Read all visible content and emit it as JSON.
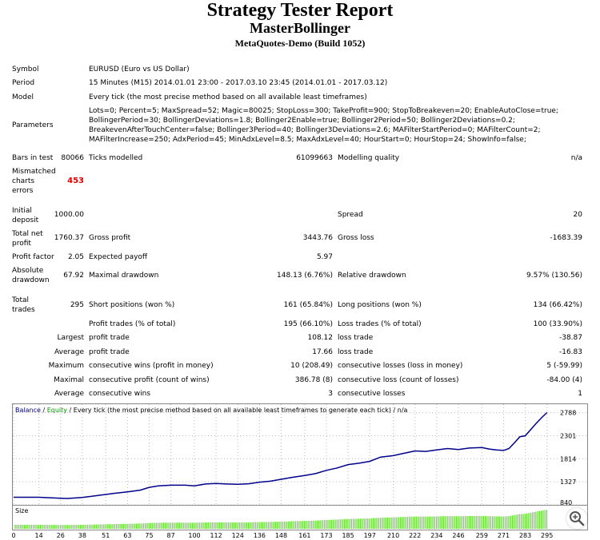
{
  "header": {
    "title": "Strategy Tester Report",
    "expert": "MasterBollinger",
    "server": "MetaQuotes-Demo (Build 1052)"
  },
  "rows": {
    "symbol": {
      "label": "Symbol",
      "value": "EURUSD (Euro vs US Dollar)"
    },
    "period": {
      "label": "Period",
      "value": "15 Minutes (M15) 2014.01.01 23:00 - 2017.03.10 23:45 (2014.01.01 - 2017.03.12)"
    },
    "model": {
      "label": "Model",
      "value": "Every tick (the most precise method based on all available least timeframes)"
    },
    "parameters": {
      "label": "Parameters",
      "lines": [
        "Lots=0; Percent=5; MaxSpread=52; Magic=80025; StopLoss=300; TakeProfit=900; StopToBreakeven=20; EnableAutoClose=true;",
        "BollingerPeriod=30; BollingerDeviations=1.8; Bollinger2Enable=true; Bollinger2Period=50; Bollinger2Deviations=0.2;",
        "BreakevenAfterTouchCenter=false; Bollinger3Period=40; Bollinger3Deviations=2.6; MAFilterStartPeriod=0; MAFilterCount=2;",
        "MAFilterIncrease=250; AdxPeriod=45; MinAdxLevel=8.5; MaxAdxLevel=40; HourStart=0; HourStop=24; ShowInfo=false;"
      ]
    },
    "bars": {
      "label": "Bars in test",
      "value": "80066",
      "label2": "Ticks modelled",
      "value2": "61099663",
      "label3": "Modelling quality",
      "value3": "n/a"
    },
    "mismatched": {
      "label_lines": [
        "Mismatched",
        "charts",
        "errors"
      ],
      "value": "453"
    },
    "deposit": {
      "label_lines": [
        "Initial",
        "deposit"
      ],
      "value": "1000.00",
      "label3": "Spread",
      "value3": "20"
    },
    "netprofit": {
      "label_lines": [
        "Total net",
        "profit"
      ],
      "value": "1760.37",
      "label2": "Gross profit",
      "value2": "3443.76",
      "label3": "Gross loss",
      "value3": "-1683.39"
    },
    "profitfactor": {
      "label": "Profit factor",
      "value": "2.05",
      "label2": "Expected payoff",
      "value2": "5.97"
    },
    "drawdown": {
      "label_lines": [
        "Absolute",
        "drawdown"
      ],
      "value": "67.92",
      "label2": "Maximal drawdown",
      "value2": "148.13 (6.76%)",
      "label3": "Relative drawdown",
      "value3": "9.57% (130.56)"
    },
    "trades": {
      "label_lines": [
        "Total",
        "trades"
      ],
      "value": "295",
      "label2": "Short positions (won %)",
      "value2": "161 (65.84%)",
      "label3": "Long positions (won %)",
      "value3": "134 (66.42%)"
    },
    "profittrades": {
      "label2": "Profit trades (% of total)",
      "value2": "195 (66.10%)",
      "label3": "Loss trades (% of total)",
      "value3": "100 (33.90%)"
    },
    "largest": {
      "label": "Largest",
      "label2": "profit trade",
      "value2": "108.12",
      "label3": "loss trade",
      "value3": "-38.87"
    },
    "average": {
      "label": "Average",
      "label2": "profit trade",
      "value2": "17.66",
      "label3": "loss trade",
      "value3": "-16.83"
    },
    "maxconsec": {
      "label": "Maximum",
      "label2": "consecutive wins (profit in money)",
      "value2": "10 (208.49)",
      "label3": "consecutive losses (loss in money)",
      "value3": "5 (-59.99)"
    },
    "maximal": {
      "label": "Maximal",
      "label2": "consecutive profit (count of wins)",
      "value2": "386.78 (8)",
      "label3": "consecutive loss (count of losses)",
      "value3": "-84.00 (4)"
    },
    "avgconsec": {
      "label": "Average",
      "label2": "consecutive wins",
      "value2": "3",
      "label3": "consecutive losses",
      "value3": "1"
    }
  },
  "chart_data": {
    "type": "line",
    "legend": {
      "balance": "Balance",
      "sep": "/",
      "equity": "Equity",
      "rest": "/ Every tick (the most precise method based on all available least timeframes to generate each tick) / n/a"
    },
    "colors": {
      "balance": "#00008b",
      "equity": "#00c000",
      "size": "#66dd33"
    },
    "ylim": [
      840,
      2950
    ],
    "yticks": [
      "2788",
      "2301",
      "1814",
      "1327",
      "840"
    ],
    "ytick_values": [
      2788,
      2301,
      1814,
      1327,
      840
    ],
    "xlim": [
      0,
      300
    ],
    "xticks": [
      "0",
      "14",
      "26",
      "38",
      "51",
      "63",
      "75",
      "87",
      "100",
      "112",
      "124",
      "136",
      "148",
      "161",
      "173",
      "185",
      "197",
      "210",
      "222",
      "234",
      "246",
      "259",
      "271",
      "283",
      "295"
    ],
    "xtick_values": [
      0,
      14,
      26,
      38,
      51,
      63,
      75,
      87,
      100,
      112,
      124,
      136,
      148,
      161,
      173,
      185,
      197,
      210,
      222,
      234,
      246,
      259,
      271,
      283,
      295
    ],
    "size_label": "Size",
    "balance": {
      "x": [
        0,
        14,
        26,
        30,
        38,
        45,
        51,
        55,
        63,
        70,
        75,
        80,
        87,
        95,
        100,
        106,
        112,
        118,
        124,
        130,
        136,
        142,
        148,
        154,
        161,
        167,
        173,
        179,
        185,
        191,
        197,
        203,
        210,
        216,
        222,
        228,
        234,
        240,
        246,
        252,
        259,
        263,
        267,
        271,
        274,
        277,
        280,
        283,
        286,
        289,
        292,
        295
      ],
      "y": [
        1000,
        1000,
        980,
        975,
        995,
        1030,
        1060,
        1080,
        1115,
        1150,
        1210,
        1240,
        1255,
        1255,
        1240,
        1280,
        1290,
        1280,
        1275,
        1285,
        1320,
        1340,
        1380,
        1420,
        1460,
        1500,
        1570,
        1620,
        1690,
        1720,
        1760,
        1850,
        1880,
        1930,
        1980,
        1970,
        2000,
        2030,
        2010,
        2040,
        2050,
        2020,
        2000,
        1990,
        2030,
        2150,
        2280,
        2300,
        2430,
        2560,
        2680,
        2790
      ]
    }
  }
}
